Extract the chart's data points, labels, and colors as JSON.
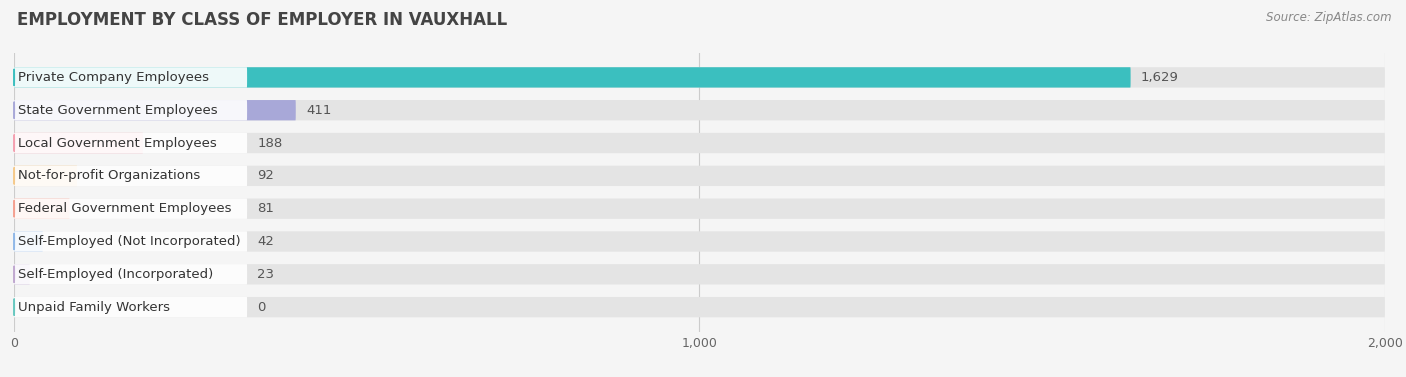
{
  "title": "EMPLOYMENT BY CLASS OF EMPLOYER IN VAUXHALL",
  "source": "Source: ZipAtlas.com",
  "categories": [
    "Private Company Employees",
    "State Government Employees",
    "Local Government Employees",
    "Not-for-profit Organizations",
    "Federal Government Employees",
    "Self-Employed (Not Incorporated)",
    "Self-Employed (Incorporated)",
    "Unpaid Family Workers"
  ],
  "values": [
    1629,
    411,
    188,
    92,
    81,
    42,
    23,
    0
  ],
  "bar_colors": [
    "#3bbfbf",
    "#a8a8d8",
    "#f4a0b0",
    "#f5c98a",
    "#f4a090",
    "#90b8e8",
    "#c0a8d0",
    "#68c8c0"
  ],
  "bg_color": "#f5f5f5",
  "bar_bg_color": "#e4e4e4",
  "xlim": [
    0,
    2000
  ],
  "xticks": [
    0,
    1000,
    2000
  ],
  "title_fontsize": 12,
  "label_fontsize": 9.5,
  "value_fontsize": 9.5,
  "source_fontsize": 8.5
}
